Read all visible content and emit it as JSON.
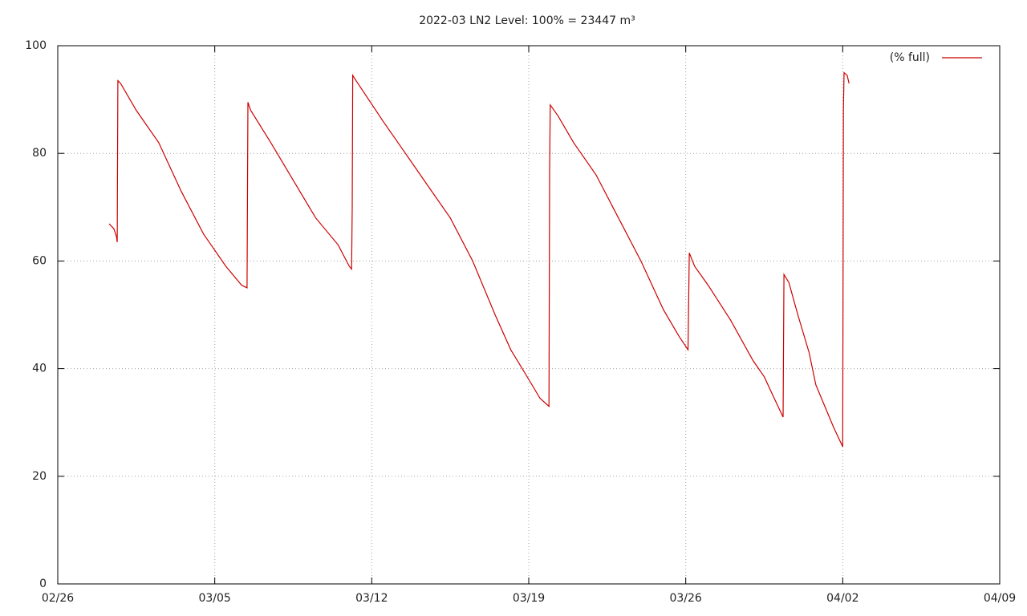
{
  "chart_data": {
    "type": "line",
    "title": "2022-03 LN2 Level: 100% = 23447 m³",
    "x": [
      2.29,
      2.5,
      2.62,
      2.65,
      2.68,
      2.8,
      3.5,
      4.5,
      5.5,
      6.5,
      7.5,
      8.2,
      8.44,
      8.48,
      8.6,
      9.5,
      10.5,
      11.5,
      12.5,
      13.0,
      13.1,
      13.13,
      13.15,
      13.3,
      14.5,
      15.5,
      16.5,
      17.5,
      18.5,
      19.5,
      20.2,
      21,
      21.5,
      21.9,
      21.93,
      21.96,
      22.3,
      23,
      24,
      25,
      26,
      27,
      27.7,
      28.1,
      28.16,
      28.4,
      29,
      30,
      31,
      31.5,
      32,
      32.34,
      32.38,
      32.6,
      33,
      33.5,
      33.8,
      34.2,
      34.6,
      35.0,
      35.03,
      35.06,
      35.2,
      35.28
    ],
    "series": [
      {
        "name": "(% full)",
        "color": "#cc0000",
        "values": [
          66.9,
          66,
          64.5,
          63.5,
          93.5,
          93,
          88,
          82,
          73,
          65,
          59,
          55.5,
          55.0,
          89.5,
          88,
          82,
          75,
          68,
          63,
          59,
          58.5,
          70,
          94.5,
          93.5,
          86,
          80,
          74,
          68,
          60,
          50,
          43.5,
          38,
          34.5,
          33,
          76.5,
          89,
          87,
          82,
          76,
          68,
          60,
          51,
          46,
          43.5,
          61.5,
          59,
          55.5,
          49,
          41.5,
          38.5,
          34,
          31,
          57.5,
          56,
          50,
          43,
          37,
          33,
          29,
          25.5,
          88,
          95,
          94.5,
          93
        ]
      }
    ],
    "xlim": [
      0,
      42
    ],
    "xticks": [
      {
        "value": 0,
        "label": "02/26"
      },
      {
        "value": 7,
        "label": "03/05"
      },
      {
        "value": 14,
        "label": "03/12"
      },
      {
        "value": 21,
        "label": "03/19"
      },
      {
        "value": 28,
        "label": "03/26"
      },
      {
        "value": 35,
        "label": "04/02"
      },
      {
        "value": 42,
        "label": "04/09"
      }
    ],
    "ylim": [
      0,
      100
    ],
    "yticks": [
      0,
      20,
      40,
      60,
      80,
      100
    ],
    "grid": true,
    "legend": "top-right"
  }
}
